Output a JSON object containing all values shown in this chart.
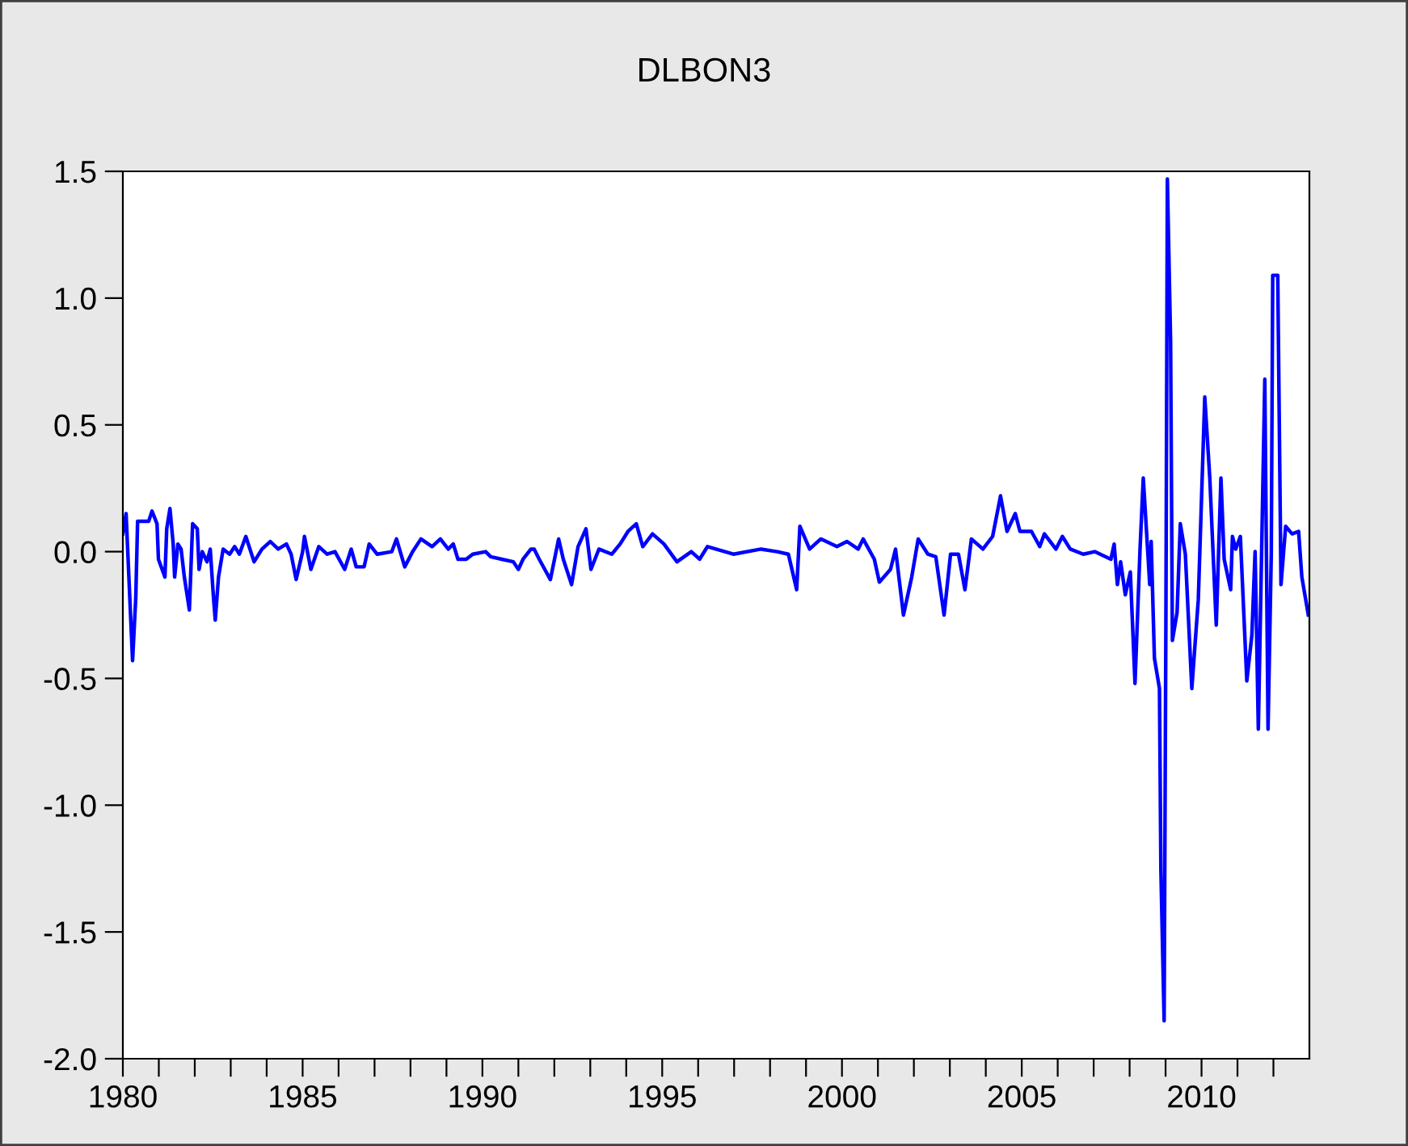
{
  "chart_data": {
    "type": "line",
    "title": "DLBON3",
    "x": [
      1980.0,
      1980.09,
      1980.18,
      1980.27,
      1980.36,
      1980.41,
      1980.72,
      1980.81,
      1980.95,
      1980.99,
      1981.17,
      1981.22,
      1981.31,
      1981.4,
      1981.44,
      1981.53,
      1981.62,
      1981.71,
      1981.85,
      1981.94,
      1982.07,
      1982.12,
      1982.21,
      1982.34,
      1982.43,
      1982.52,
      1982.57,
      1982.66,
      1982.79,
      1982.97,
      1983.11,
      1983.24,
      1983.42,
      1983.65,
      1983.87,
      1984.1,
      1984.32,
      1984.55,
      1984.68,
      1984.82,
      1985.0,
      1985.05,
      1985.23,
      1985.45,
      1985.68,
      1985.9,
      1986.17,
      1986.35,
      1986.49,
      1986.71,
      1986.85,
      1987.07,
      1987.48,
      1987.61,
      1987.84,
      1988.06,
      1988.29,
      1988.6,
      1988.83,
      1989.05,
      1989.19,
      1989.32,
      1989.55,
      1989.73,
      1990.09,
      1990.23,
      1990.54,
      1990.86,
      1991.0,
      1991.13,
      1991.35,
      1991.44,
      1991.58,
      1991.89,
      1992.12,
      1992.25,
      1992.48,
      1992.66,
      1992.88,
      1993.02,
      1993.24,
      1993.6,
      1993.83,
      1994.05,
      1994.28,
      1994.46,
      1994.73,
      1995.05,
      1995.41,
      1995.81,
      1996.04,
      1996.26,
      1996.98,
      1997.75,
      1998.2,
      1998.51,
      1998.74,
      1998.83,
      1999.1,
      1999.41,
      1999.86,
      2000.14,
      2000.45,
      2000.59,
      2000.9,
      2001.04,
      2001.35,
      2001.49,
      2001.71,
      2001.94,
      2002.12,
      2002.39,
      2002.61,
      2002.84,
      2003.02,
      2003.24,
      2003.42,
      2003.6,
      2003.92,
      2004.19,
      2004.41,
      2004.59,
      2004.82,
      2004.95,
      2005.27,
      2005.5,
      2005.63,
      2005.95,
      2006.13,
      2006.35,
      2006.71,
      2007.03,
      2007.48,
      2007.57,
      2007.66,
      2007.75,
      2007.88,
      2008.02,
      2008.15,
      2008.29,
      2008.38,
      2008.56,
      2008.6,
      2008.69,
      2008.83,
      2008.87,
      2008.96,
      2009.01,
      2009.05,
      2009.14,
      2009.19,
      2009.32,
      2009.41,
      2009.55,
      2009.73,
      2009.91,
      2010.09,
      2010.23,
      2010.41,
      2010.54,
      2010.63,
      2010.81,
      2010.86,
      2010.95,
      2011.08,
      2011.26,
      2011.4,
      2011.49,
      2011.58,
      2011.76,
      2011.85,
      2011.94,
      2011.98,
      2012.12,
      2012.21,
      2012.34,
      2012.52,
      2012.7,
      2012.79,
      2012.97
    ],
    "series": [
      {
        "color": "#0000ff",
        "values": [
          0.07,
          0.15,
          -0.14,
          -0.43,
          -0.18,
          0.12,
          0.12,
          0.16,
          0.11,
          -0.03,
          -0.1,
          0.09,
          0.17,
          0.03,
          -0.1,
          0.03,
          0.01,
          -0.1,
          -0.23,
          0.11,
          0.09,
          -0.07,
          0,
          -0.04,
          0.01,
          -0.18,
          -0.27,
          -0.1,
          0.01,
          -0.01,
          0.02,
          -0.01,
          0.06,
          -0.04,
          0.01,
          0.04,
          0.01,
          0.03,
          -0.01,
          -0.11,
          0,
          0.06,
          -0.07,
          0.02,
          -0.01,
          0,
          -0.07,
          0.01,
          -0.06,
          -0.06,
          0.03,
          -0.01,
          0,
          0.05,
          -0.06,
          0,
          0.05,
          0.02,
          0.05,
          0.01,
          0.03,
          -0.03,
          -0.03,
          -0.01,
          0,
          -0.02,
          -0.03,
          -0.04,
          -0.07,
          -0.03,
          0.01,
          0.01,
          -0.03,
          -0.11,
          0.05,
          -0.03,
          -0.13,
          0.02,
          0.09,
          -0.07,
          0.01,
          -0.01,
          0.03,
          0.08,
          0.11,
          0.02,
          0.07,
          0.03,
          -0.04,
          0,
          -0.03,
          0.02,
          -0.01,
          0.01,
          0,
          -0.01,
          -0.15,
          0.1,
          0.01,
          0.05,
          0.02,
          0.04,
          0.01,
          0.05,
          -0.03,
          -0.12,
          -0.07,
          0.01,
          -0.25,
          -0.1,
          0.05,
          -0.01,
          -0.02,
          -0.25,
          -0.01,
          -0.01,
          -0.15,
          0.05,
          0.01,
          0.06,
          0.22,
          0.08,
          0.15,
          0.08,
          0.08,
          0.02,
          0.07,
          0.01,
          0.06,
          0.01,
          -0.01,
          0,
          -0.03,
          0.03,
          -0.13,
          -0.04,
          -0.17,
          -0.08,
          -0.52,
          0.01,
          0.29,
          -0.13,
          0.04,
          -0.42,
          -0.54,
          -1.26,
          -1.85,
          -0.24,
          1.47,
          0.83,
          -0.35,
          -0.24,
          0.11,
          -0.01,
          -0.54,
          -0.19,
          0.61,
          0.29,
          -0.29,
          0.29,
          -0.03,
          -0.15,
          0.06,
          0.01,
          0.06,
          -0.51,
          -0.33,
          0,
          -0.7,
          0.68,
          -0.7,
          -0.01,
          1.09,
          1.09,
          -0.13,
          0.1,
          0.07,
          0.08,
          -0.1,
          -0.25
        ]
      }
    ],
    "xlim": [
      1980,
      2013
    ],
    "xticks": [
      1980,
      {
        "value": 1981,
        "label": null
      },
      {
        "value": 1982,
        "label": null
      },
      {
        "value": 1983,
        "label": null
      },
      {
        "value": 1984,
        "label": null
      },
      1985,
      {
        "value": 1986,
        "label": null
      },
      {
        "value": 1987,
        "label": null
      },
      {
        "value": 1988,
        "label": null
      },
      {
        "value": 1989,
        "label": null
      },
      1990,
      {
        "value": 1991,
        "label": null
      },
      {
        "value": 1992,
        "label": null
      },
      {
        "value": 1993,
        "label": null
      },
      {
        "value": 1994,
        "label": null
      },
      1995,
      {
        "value": 1996,
        "label": null
      },
      {
        "value": 1997,
        "label": null
      },
      {
        "value": 1998,
        "label": null
      },
      {
        "value": 1999,
        "label": null
      },
      2000,
      {
        "value": 2001,
        "label": null
      },
      {
        "value": 2002,
        "label": null
      },
      {
        "value": 2003,
        "label": null
      },
      {
        "value": 2004,
        "label": null
      },
      2005,
      {
        "value": 2006,
        "label": null
      },
      {
        "value": 2007,
        "label": null
      },
      {
        "value": 2008,
        "label": null
      },
      {
        "value": 2009,
        "label": null
      },
      2010,
      {
        "value": 2011,
        "label": null
      },
      {
        "value": 2012,
        "label": null
      }
    ],
    "ylim": [
      -2.0,
      1.5
    ],
    "yticks": [
      {
        "value": -2.0,
        "label": "-2.0"
      },
      {
        "value": -1.5,
        "label": "-1.5"
      },
      {
        "value": -1.0,
        "label": "-1.0"
      },
      {
        "value": -0.5,
        "label": "-0.5"
      },
      {
        "value": 0,
        "label": "0.0"
      },
      {
        "value": 0.5,
        "label": "0.5"
      },
      {
        "value": 1.0,
        "label": "1.0"
      },
      {
        "value": 1.5,
        "label": "1.5"
      }
    ],
    "grid": false,
    "marker": "none",
    "line_style": "solid"
  }
}
